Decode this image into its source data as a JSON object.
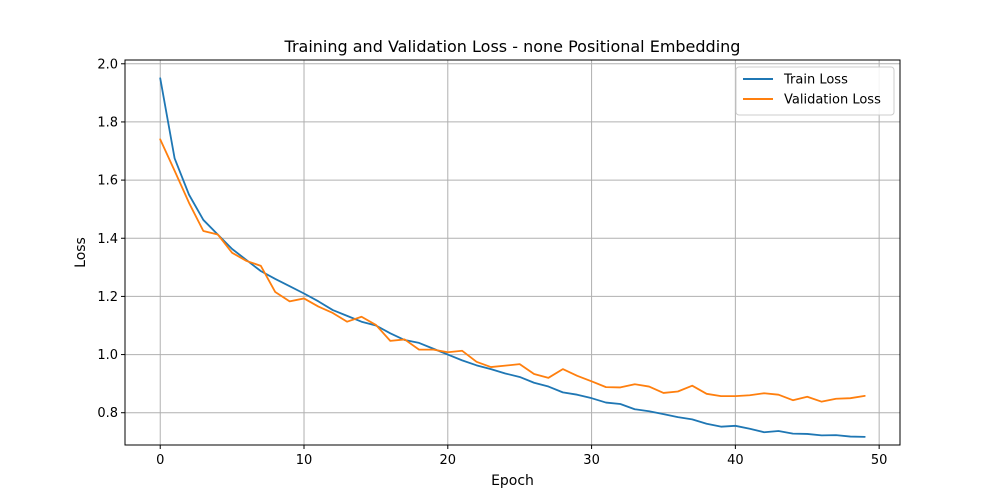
{
  "chart_data": {
    "type": "line",
    "title": "Training and Validation Loss  - none Positional Embedding",
    "xlabel": "Epoch",
    "ylabel": "Loss",
    "xlim": [
      -2.45,
      51.45
    ],
    "ylim": [
      0.689,
      2.013
    ],
    "xticks": [
      0,
      10,
      20,
      30,
      40,
      50
    ],
    "yticks": [
      0.8,
      1.0,
      1.2,
      1.4,
      1.6,
      1.8,
      2.0
    ],
    "grid": true,
    "legend_position": "top-right",
    "x": [
      0,
      1,
      2,
      3,
      4,
      5,
      6,
      7,
      8,
      9,
      10,
      11,
      12,
      13,
      14,
      15,
      16,
      17,
      18,
      19,
      20,
      21,
      22,
      23,
      24,
      25,
      26,
      27,
      28,
      29,
      30,
      31,
      32,
      33,
      34,
      35,
      36,
      37,
      38,
      39,
      40,
      41,
      42,
      43,
      44,
      45,
      46,
      47,
      48,
      49
    ],
    "series": [
      {
        "name": "Train Loss",
        "color": "#1f77b4",
        "values": [
          1.95,
          1.675,
          1.55,
          1.463,
          1.413,
          1.363,
          1.325,
          1.287,
          1.26,
          1.235,
          1.21,
          1.183,
          1.153,
          1.133,
          1.113,
          1.1,
          1.073,
          1.05,
          1.04,
          1.02,
          1.0,
          0.98,
          0.963,
          0.95,
          0.935,
          0.923,
          0.903,
          0.89,
          0.87,
          0.862,
          0.85,
          0.835,
          0.83,
          0.812,
          0.805,
          0.795,
          0.785,
          0.777,
          0.762,
          0.752,
          0.755,
          0.745,
          0.733,
          0.737,
          0.728,
          0.727,
          0.722,
          0.723,
          0.718,
          0.717
        ]
      },
      {
        "name": "Validation Loss",
        "color": "#ff7f0e",
        "values": [
          1.74,
          1.632,
          1.522,
          1.425,
          1.413,
          1.35,
          1.322,
          1.305,
          1.215,
          1.183,
          1.193,
          1.165,
          1.143,
          1.113,
          1.13,
          1.102,
          1.047,
          1.052,
          1.017,
          1.017,
          1.008,
          1.013,
          0.975,
          0.957,
          0.962,
          0.967,
          0.933,
          0.92,
          0.95,
          0.927,
          0.908,
          0.888,
          0.887,
          0.898,
          0.89,
          0.868,
          0.873,
          0.893,
          0.865,
          0.857,
          0.857,
          0.86,
          0.867,
          0.862,
          0.843,
          0.855,
          0.838,
          0.848,
          0.85,
          0.858
        ]
      }
    ]
  }
}
